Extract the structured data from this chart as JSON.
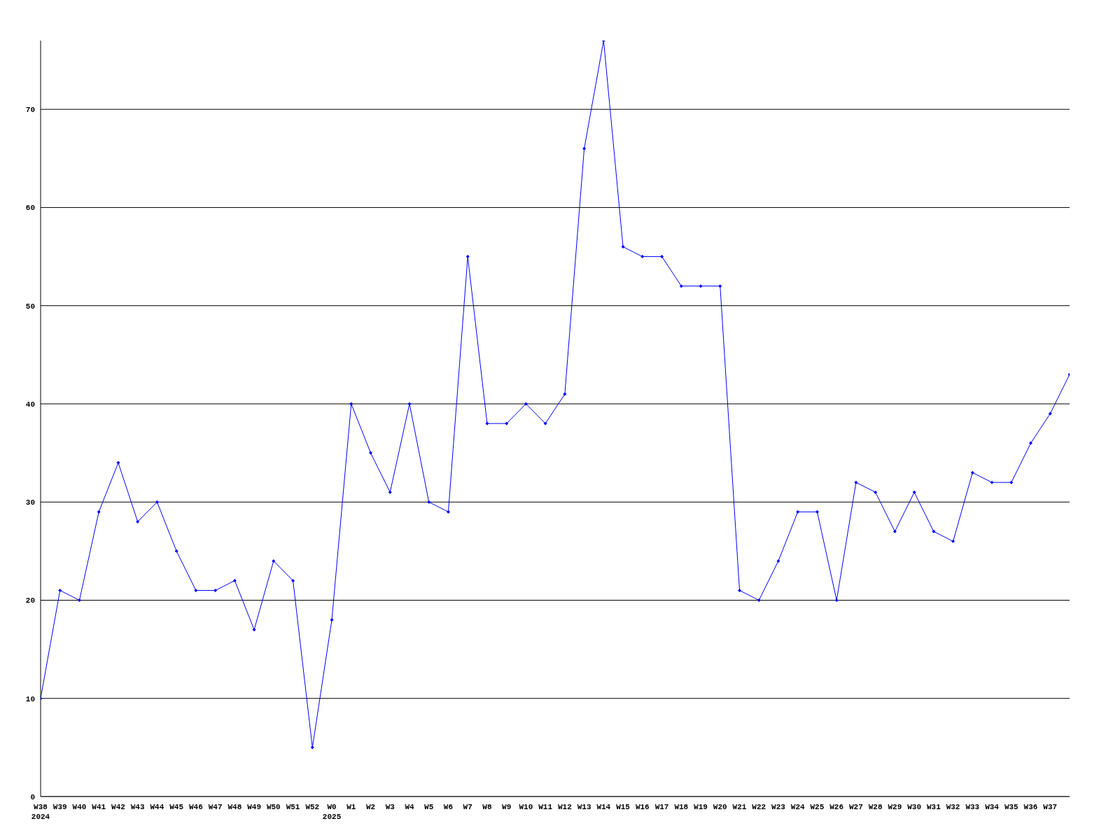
{
  "chart_data": {
    "type": "line",
    "categories": [
      "W38\n2024",
      "W39",
      "W40",
      "W41",
      "W42",
      "W43",
      "W44",
      "W45",
      "W46",
      "W47",
      "W48",
      "W49",
      "W50",
      "W51",
      "W52",
      "W0\n2025",
      "W1",
      "W2",
      "W3",
      "W4",
      "W5",
      "W6",
      "W7",
      "W8",
      "W9",
      "W10",
      "W11",
      "W12",
      "W13",
      "W14",
      "W15",
      "W16",
      "W17",
      "W18",
      "W19",
      "W20",
      "W21",
      "W22",
      "W23",
      "W24",
      "W25",
      "W26",
      "W27",
      "W28",
      "W29",
      "W30",
      "W31",
      "W32",
      "W33",
      "W34",
      "W35",
      "W36",
      "W37",
      null
    ],
    "series": [
      {
        "color": "#0000ff",
        "values": [
          10,
          21,
          20,
          29,
          34,
          28,
          30,
          25,
          21,
          21,
          22,
          17,
          24,
          22,
          5,
          18,
          40,
          35,
          31,
          40,
          30,
          29,
          55,
          38,
          38,
          40,
          38,
          41,
          66,
          77,
          56,
          55,
          55,
          52,
          52,
          52,
          21,
          20,
          24,
          29,
          29,
          20,
          32,
          31,
          27,
          31,
          27,
          26,
          33,
          32,
          32,
          36,
          39,
          43
        ]
      }
    ],
    "ylim": [
      0,
      77
    ],
    "yticks": [
      0,
      10,
      20,
      30,
      40,
      50,
      60,
      70
    ],
    "grid": "y",
    "marker": "diamond",
    "line_style": "solid"
  }
}
